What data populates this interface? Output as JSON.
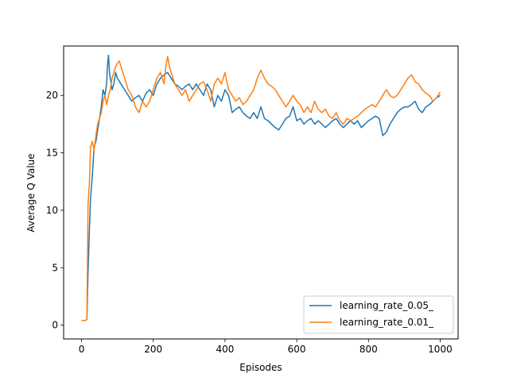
{
  "chart_data": {
    "type": "line",
    "title": "",
    "xlabel": "Episodes",
    "ylabel": "Average Q Value",
    "xlim": [
      -50,
      1050
    ],
    "ylim": [
      -1.2,
      24.3
    ],
    "xticks": [
      0,
      200,
      400,
      600,
      800,
      1000
    ],
    "yticks": [
      0,
      5,
      10,
      15,
      20
    ],
    "grid": false,
    "legend_position": "lower right",
    "series": [
      {
        "name": "learning_rate_0.05_",
        "color": "#1f77b4",
        "x": [
          0,
          10,
          15,
          18,
          22,
          25,
          30,
          35,
          40,
          45,
          50,
          55,
          60,
          65,
          70,
          72,
          75,
          78,
          80,
          85,
          90,
          95,
          100,
          110,
          120,
          130,
          140,
          150,
          160,
          170,
          180,
          190,
          200,
          210,
          220,
          230,
          240,
          250,
          260,
          270,
          280,
          290,
          300,
          310,
          320,
          330,
          340,
          350,
          360,
          370,
          380,
          390,
          400,
          410,
          420,
          430,
          440,
          450,
          460,
          470,
          480,
          490,
          500,
          510,
          520,
          530,
          540,
          550,
          560,
          570,
          580,
          590,
          600,
          610,
          620,
          630,
          640,
          650,
          660,
          670,
          680,
          690,
          700,
          710,
          720,
          730,
          740,
          750,
          760,
          770,
          780,
          790,
          800,
          810,
          820,
          830,
          840,
          850,
          860,
          870,
          880,
          890,
          900,
          910,
          920,
          930,
          940,
          950,
          960,
          970,
          980,
          990,
          1000
        ],
        "y": [
          0.4,
          0.4,
          0.5,
          4.5,
          8.5,
          11.0,
          13.0,
          15.5,
          16.0,
          17.0,
          18.0,
          19.0,
          20.5,
          20.0,
          21.0,
          22.5,
          23.5,
          22.0,
          21.5,
          20.5,
          21.0,
          22.0,
          21.5,
          21.0,
          20.5,
          20.0,
          19.5,
          19.8,
          20.0,
          19.5,
          20.2,
          20.5,
          20.0,
          21.0,
          21.5,
          21.8,
          22.0,
          21.5,
          21.0,
          20.8,
          20.5,
          20.8,
          21.0,
          20.5,
          21.0,
          20.5,
          20.0,
          21.0,
          20.5,
          19.0,
          20.0,
          19.5,
          20.5,
          20.0,
          18.5,
          18.8,
          19.0,
          18.5,
          18.2,
          18.0,
          18.5,
          18.0,
          19.0,
          18.0,
          17.8,
          17.5,
          17.2,
          17.0,
          17.5,
          18.0,
          18.2,
          19.0,
          17.8,
          18.0,
          17.5,
          17.8,
          18.0,
          17.5,
          17.8,
          17.5,
          17.2,
          17.5,
          17.8,
          18.0,
          17.5,
          17.2,
          17.5,
          17.8,
          17.5,
          17.8,
          17.2,
          17.5,
          17.8,
          18.0,
          18.2,
          18.0,
          16.5,
          16.8,
          17.5,
          18.0,
          18.5,
          18.8,
          19.0,
          19.0,
          19.2,
          19.5,
          18.8,
          18.5,
          19.0,
          19.2,
          19.5,
          19.8,
          20.0
        ]
      },
      {
        "name": "learning_rate_0.01_",
        "color": "#ff7f0e",
        "x": [
          0,
          10,
          15,
          18,
          22,
          25,
          30,
          35,
          40,
          45,
          50,
          55,
          60,
          65,
          70,
          75,
          80,
          85,
          90,
          95,
          100,
          105,
          110,
          120,
          130,
          140,
          150,
          160,
          170,
          180,
          190,
          200,
          210,
          220,
          230,
          235,
          240,
          245,
          250,
          260,
          270,
          280,
          290,
          300,
          310,
          320,
          330,
          340,
          350,
          360,
          370,
          380,
          390,
          400,
          410,
          420,
          430,
          440,
          450,
          460,
          470,
          480,
          490,
          500,
          510,
          520,
          530,
          540,
          550,
          560,
          570,
          580,
          590,
          600,
          610,
          620,
          630,
          640,
          650,
          660,
          670,
          680,
          690,
          700,
          710,
          720,
          730,
          740,
          750,
          760,
          770,
          780,
          790,
          800,
          810,
          820,
          830,
          840,
          850,
          860,
          870,
          880,
          890,
          900,
          910,
          920,
          930,
          940,
          950,
          960,
          970,
          980,
          990,
          1000
        ],
        "y": [
          0.4,
          0.4,
          0.5,
          10.5,
          12.5,
          15.5,
          16.0,
          15.2,
          16.5,
          17.5,
          18.0,
          18.5,
          19.5,
          20.0,
          19.2,
          20.0,
          20.5,
          21.5,
          22.0,
          22.5,
          22.8,
          23.0,
          22.5,
          21.5,
          20.5,
          20.0,
          19.0,
          18.5,
          19.5,
          19.0,
          19.5,
          20.5,
          21.5,
          22.0,
          21.0,
          22.5,
          23.4,
          22.5,
          22.0,
          21.0,
          20.5,
          20.0,
          20.5,
          19.5,
          20.0,
          20.5,
          21.0,
          21.2,
          20.5,
          19.5,
          21.0,
          21.5,
          21.0,
          22.0,
          20.5,
          20.0,
          19.5,
          19.8,
          19.2,
          19.5,
          20.0,
          20.5,
          21.5,
          22.2,
          21.5,
          21.0,
          20.8,
          20.5,
          20.0,
          19.5,
          19.0,
          19.5,
          20.0,
          19.5,
          19.2,
          18.5,
          19.0,
          18.5,
          19.5,
          18.8,
          18.5,
          18.8,
          18.2,
          18.0,
          18.5,
          17.8,
          17.5,
          18.0,
          17.8,
          18.0,
          18.2,
          18.5,
          18.8,
          19.0,
          19.2,
          19.0,
          19.5,
          20.0,
          20.5,
          20.0,
          19.8,
          20.0,
          20.5,
          21.0,
          21.5,
          21.8,
          21.2,
          21.0,
          20.5,
          20.2,
          20.0,
          19.5,
          19.8,
          20.3
        ]
      }
    ]
  }
}
